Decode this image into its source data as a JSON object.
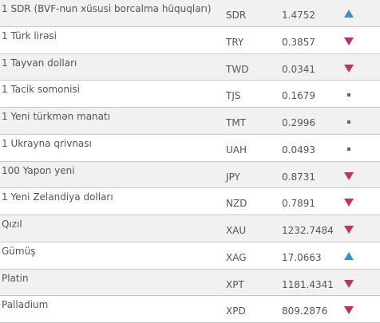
{
  "table": {
    "rows": [
      {
        "name": "1 SDR (BVF-nun xüsusi borcalma hüquqları)",
        "code": "SDR",
        "rate": "1.4752",
        "trend": "up"
      },
      {
        "name": "1 Türk lirəsi",
        "code": "TRY",
        "rate": "0.3857",
        "trend": "down"
      },
      {
        "name": "1 Tayvan dolları",
        "code": "TWD",
        "rate": "0.0341",
        "trend": "down"
      },
      {
        "name": "1 Tacik somonisi",
        "code": "TJS",
        "rate": "0.1679",
        "trend": "flat"
      },
      {
        "name": "1 Yeni türkmən manatı",
        "code": "TMT",
        "rate": "0.2996",
        "trend": "flat"
      },
      {
        "name": "1 Ukrayna qrivnası",
        "code": "UAH",
        "rate": "0.0493",
        "trend": "flat"
      },
      {
        "name": "100 Yapon yeni",
        "code": "JPY",
        "rate": "0.8731",
        "trend": "down"
      },
      {
        "name": "1 Yeni Zelandiya dolları",
        "code": "NZD",
        "rate": "0.7891",
        "trend": "down"
      },
      {
        "name": "Qızıl",
        "code": "XAU",
        "rate": "1232.7484",
        "trend": "down"
      },
      {
        "name": "Gümüş",
        "code": "XAG",
        "rate": "17.0663",
        "trend": "up"
      },
      {
        "name": "Platin",
        "code": "XPT",
        "rate": "1181.4341",
        "trend": "down"
      },
      {
        "name": "Palladium",
        "code": "XPD",
        "rate": "809.2876",
        "trend": "down"
      }
    ]
  }
}
